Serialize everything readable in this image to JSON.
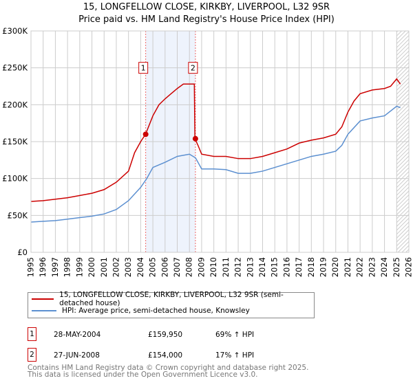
{
  "title": "15, LONGFELLOW CLOSE, KIRKBY, LIVERPOOL, L32 9SR",
  "subtitle": "Price paid vs. HM Land Registry's House Price Index (HPI)",
  "chart_data": {
    "type": "line",
    "ylim": [
      0,
      300000
    ],
    "xlim": [
      1995,
      2026
    ],
    "yticks": [
      {
        "v": 0,
        "label": "£0"
      },
      {
        "v": 50000,
        "label": "£50K"
      },
      {
        "v": 100000,
        "label": "£100K"
      },
      {
        "v": 150000,
        "label": "£150K"
      },
      {
        "v": 200000,
        "label": "£200K"
      },
      {
        "v": 250000,
        "label": "£250K"
      },
      {
        "v": 300000,
        "label": "£300K"
      }
    ],
    "xticks": [
      "1995",
      "1996",
      "1997",
      "1998",
      "1999",
      "2000",
      "2001",
      "2002",
      "2003",
      "2004",
      "2005",
      "2006",
      "2007",
      "2008",
      "2009",
      "2010",
      "2011",
      "2012",
      "2013",
      "2014",
      "2015",
      "2016",
      "2017",
      "2018",
      "2019",
      "2020",
      "2021",
      "2022",
      "2023",
      "2024",
      "2025",
      "2026"
    ],
    "series": [
      {
        "name": "15, LONGFELLOW CLOSE, KIRKBY, LIVERPOOL, L32 9SR (semi-detached house)",
        "color": "#cc0000",
        "x": [
          1995,
          1996,
          1997,
          1998,
          1999,
          2000,
          2001,
          2002,
          2003,
          2003.5,
          2004,
          2004.4,
          2005,
          2005.5,
          2006,
          2006.5,
          2007,
          2007.5,
          2008.4,
          2008.45,
          2008.7,
          2009,
          2010,
          2011,
          2012,
          2013,
          2014,
          2015,
          2016,
          2017,
          2018,
          2019,
          2020,
          2020.5,
          2021,
          2021.5,
          2022,
          2023,
          2024,
          2024.5,
          2025,
          2025.3
        ],
        "y": [
          69000,
          70000,
          72000,
          74000,
          77000,
          80000,
          85000,
          95000,
          110000,
          135000,
          150000,
          159950,
          185000,
          200000,
          208000,
          215000,
          222000,
          228000,
          228000,
          154000,
          145000,
          133000,
          130000,
          130000,
          127000,
          127000,
          130000,
          135000,
          140000,
          148000,
          152000,
          155000,
          160000,
          170000,
          190000,
          205000,
          215000,
          220000,
          222000,
          225000,
          235000,
          228000
        ]
      },
      {
        "name": "HPI: Average price, semi-detached house, Knowsley",
        "color": "#5b8fd0",
        "x": [
          1995,
          1996,
          1997,
          1998,
          1999,
          2000,
          2001,
          2002,
          2003,
          2004,
          2004.5,
          2005,
          2006,
          2007,
          2008,
          2008.5,
          2009,
          2010,
          2011,
          2012,
          2013,
          2014,
          2015,
          2016,
          2017,
          2018,
          2019,
          2020,
          2020.5,
          2021,
          2022,
          2023,
          2024,
          2025,
          2025.3
        ],
        "y": [
          41000,
          42000,
          43000,
          45000,
          47000,
          49000,
          52000,
          58000,
          70000,
          88000,
          100000,
          115000,
          122000,
          130000,
          133000,
          128000,
          113000,
          113000,
          112000,
          107000,
          107000,
          110000,
          115000,
          120000,
          125000,
          130000,
          133000,
          137000,
          145000,
          160000,
          178000,
          182000,
          185000,
          198000,
          196000
        ]
      }
    ],
    "sales": [
      {
        "label": "1",
        "x": 2004.41,
        "y": 159950
      },
      {
        "label": "2",
        "x": 2008.49,
        "y": 154000
      }
    ],
    "future_from": 2025.0
  },
  "legend": {
    "items": [
      "15, LONGFELLOW CLOSE, KIRKBY, LIVERPOOL, L32 9SR (semi-detached house)",
      "HPI: Average price, semi-detached house, Knowsley"
    ]
  },
  "table": [
    {
      "num": "1",
      "date": "28-MAY-2004",
      "price": "£159,950",
      "hpi": "69% ↑ HPI"
    },
    {
      "num": "2",
      "date": "27-JUN-2008",
      "price": "£154,000",
      "hpi": "17% ↑ HPI"
    }
  ],
  "footer": {
    "line1": "Contains HM Land Registry data © Crown copyright and database right 2025.",
    "line2": "This data is licensed under the Open Government Licence v3.0."
  }
}
